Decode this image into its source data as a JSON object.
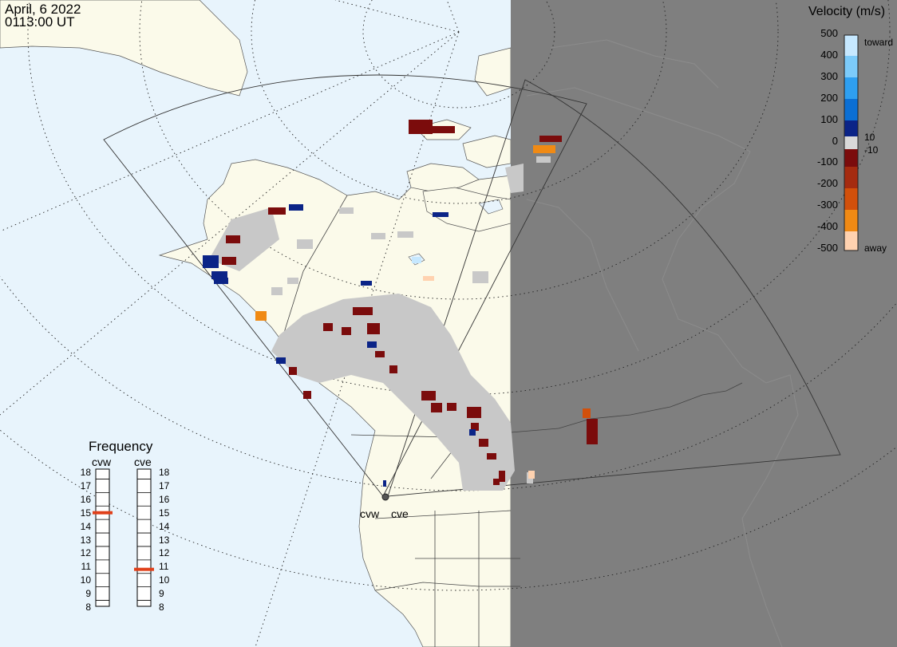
{
  "header": {
    "date": "April, 6 2022",
    "time": "0113:00 UT"
  },
  "legend": {
    "title": "Velocity (m/s)",
    "ticks": [
      "500",
      "400",
      "300",
      "200",
      "100",
      "0",
      "-100",
      "-200",
      "-300",
      "-400",
      "-500"
    ],
    "toward_label": "toward",
    "away_label": "away",
    "pos_threshold": "10",
    "neg_threshold": "-10",
    "colors": [
      "#c6e8ff",
      "#7ccbfa",
      "#2e9ff0",
      "#0b6fd4",
      "#0a47a8",
      "#0b2487",
      "#d9d9d9",
      "#7b0c0c",
      "#a52b10",
      "#d2500b",
      "#f08a14",
      "#ffd2b0"
    ]
  },
  "frequency": {
    "title": "Frequency",
    "radars": [
      {
        "name": "cvw",
        "value": 15
      },
      {
        "name": "cve",
        "value": 10.8
      }
    ],
    "scale": [
      "18",
      "17",
      "16",
      "15",
      "14",
      "13",
      "12",
      "11",
      "10",
      "9",
      "8"
    ],
    "marker_color": "#e0401a"
  },
  "radars": [
    {
      "name": "cvw"
    },
    {
      "name": "cve"
    }
  ],
  "map": {
    "land_color": "#fbfaea",
    "ocean_color": "#e8f4fc",
    "night_color": "#7f7f7f",
    "scatter_color": "#c8c8c8"
  }
}
